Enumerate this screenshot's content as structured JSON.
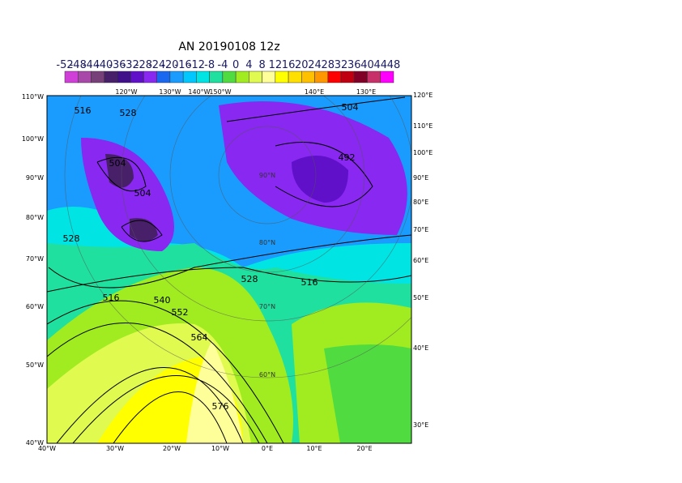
{
  "title": "AN  20190108 12z",
  "colorbar": {
    "levels": [
      -52,
      -48,
      -44,
      -40,
      -36,
      -32,
      -28,
      -24,
      -20,
      -16,
      -12,
      -8,
      -4,
      0,
      4,
      8,
      12,
      16,
      20,
      24,
      28,
      32,
      36,
      40,
      44,
      48
    ],
    "colors": [
      "#d040d8",
      "#a848a8",
      "#784078",
      "#48206a",
      "#40108a",
      "#6010c8",
      "#8828f0",
      "#1a68f0",
      "#1a9cff",
      "#00c8ff",
      "#00e4e4",
      "#20e0a0",
      "#50dc40",
      "#a0ec20",
      "#e0fa50",
      "#ffff9a",
      "#ffff00",
      "#ffe000",
      "#ffc000",
      "#ff9800",
      "#ff0000",
      "#c00010",
      "#800028",
      "#c8306a",
      "#ff00ff"
    ]
  },
  "left_labels": [
    "110°W",
    "100°W",
    "90°W",
    "80°W",
    "70°W",
    "60°W",
    "50°W",
    "40°W"
  ],
  "bottom_labels": [
    "40°W",
    "30°W",
    "20°W",
    "10°W",
    "0°E",
    "10°E",
    "20°E"
  ],
  "right_labels": [
    "120°E",
    "110°E",
    "100°E",
    "90°E",
    "80°E",
    "70°E",
    "60°E",
    "50°E",
    "40°E",
    "30°E"
  ],
  "top_labels": [
    "120°W",
    "130°W",
    "140°W",
    "150°W",
    "140°E",
    "130°E"
  ],
  "lat_labels": [
    "90°N",
    "80°N",
    "70°N",
    "60°N"
  ],
  "contour_labels": [
    "516",
    "528",
    "504",
    "504",
    "528",
    "516",
    "540",
    "552",
    "564",
    "576",
    "528",
    "516",
    "504",
    "492"
  ]
}
